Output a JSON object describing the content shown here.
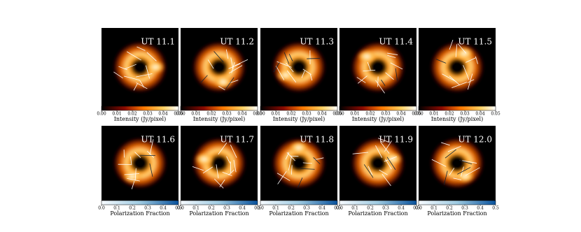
{
  "rows": [
    {
      "panels": [
        "UT 11.1",
        "UT 11.2",
        "UT 11.3",
        "UT 11.4",
        "UT 11.5"
      ],
      "colorbar_label": "Intensity (Jy/pixel)",
      "ticks": [
        "0.00",
        "0.01",
        "0.02",
        "0.03",
        "0.04",
        "0.05"
      ]
    },
    {
      "panels": [
        "UT 11.6",
        "UT 11.7",
        "UT 11.8",
        "UT 11.9",
        "UT 12.0"
      ],
      "colorbar_label": "Polarization Fraction",
      "ticks": [
        "0.0",
        "0.1",
        "0.2",
        "0.3",
        "0.4",
        "0.5"
      ]
    }
  ]
}
